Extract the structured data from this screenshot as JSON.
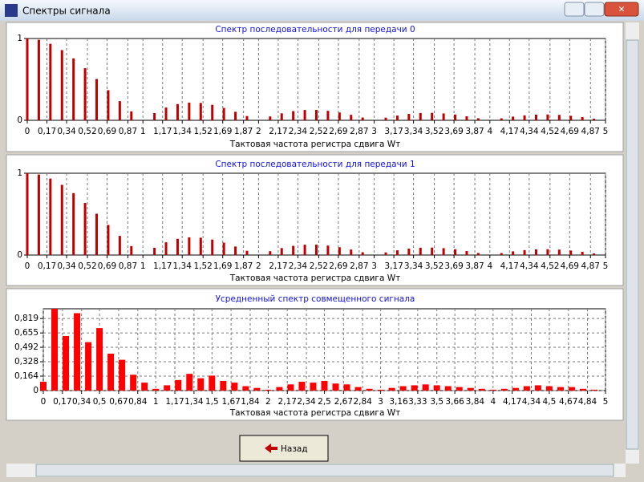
{
  "window": {
    "title": "Спектры сигнала",
    "button": "Назад"
  },
  "chart_data": [
    {
      "type": "bar",
      "title": "Спектр  последовательности для передачи 0",
      "xlabel": "Тактовая частота регистра сдвига Wт",
      "x": [
        0,
        0.1,
        0.2,
        0.3,
        0.4,
        0.5,
        0.6,
        0.7,
        0.8,
        0.9,
        1,
        1.1,
        1.2,
        1.3,
        1.4,
        1.5,
        1.6,
        1.7,
        1.8,
        1.9,
        2,
        2.1,
        2.2,
        2.3,
        2.4,
        2.5,
        2.6,
        2.7,
        2.8,
        2.9,
        3,
        3.1,
        3.2,
        3.3,
        3.4,
        3.5,
        3.6,
        3.7,
        3.8,
        3.9,
        4,
        4.1,
        4.2,
        4.3,
        4.4,
        4.5,
        4.6,
        4.7,
        4.8,
        4.9,
        5
      ],
      "values": [
        1,
        0.984,
        0.935,
        0.858,
        0.757,
        0.637,
        0.505,
        0.368,
        0.234,
        0.109,
        0,
        0.089,
        0.156,
        0.198,
        0.216,
        0.212,
        0.189,
        0.151,
        0.104,
        0.052,
        0,
        0.047,
        0.085,
        0.112,
        0.126,
        0.127,
        0.116,
        0.095,
        0.067,
        0.034,
        0,
        0.032,
        0.058,
        0.078,
        0.089,
        0.091,
        0.084,
        0.07,
        0.049,
        0.025,
        0,
        0.024,
        0.045,
        0.06,
        0.069,
        0.071,
        0.066,
        0.055,
        0.039,
        0.02,
        0
      ],
      "color": "#c00000",
      "xlim": [
        0,
        5
      ],
      "ylim": [
        0,
        1
      ],
      "yticks": [
        0,
        1
      ],
      "grid_x": true,
      "grid_y": false,
      "xticks": [
        0,
        {
          "value": 0.17,
          "label": "0,17"
        },
        {
          "value": 0.34,
          "label": "0,34"
        },
        {
          "value": 0.52,
          "label": "0,52"
        },
        {
          "value": 0.69,
          "label": "0,69"
        },
        {
          "value": 0.87,
          "label": "0,87"
        },
        1,
        {
          "value": 1.17,
          "label": "1,17"
        },
        {
          "value": 1.34,
          "label": "1,34"
        },
        {
          "value": 1.52,
          "label": "1,52"
        },
        {
          "value": 1.69,
          "label": "1,69"
        },
        {
          "value": 1.87,
          "label": "1,87"
        },
        2,
        {
          "value": 2.17,
          "label": "2,17"
        },
        {
          "value": 2.34,
          "label": "2,34"
        },
        {
          "value": 2.52,
          "label": "2,52"
        },
        {
          "value": 2.69,
          "label": "2,69"
        },
        {
          "value": 2.87,
          "label": "2,87"
        },
        3,
        {
          "value": 3.17,
          "label": "3,17"
        },
        {
          "value": 3.34,
          "label": "3,34"
        },
        {
          "value": 3.52,
          "label": "3,52"
        },
        {
          "value": 3.69,
          "label": "3,69"
        },
        {
          "value": 3.87,
          "label": "3,87"
        },
        4,
        {
          "value": 4.17,
          "label": "4,17"
        },
        {
          "value": 4.34,
          "label": "4,34"
        },
        {
          "value": 4.52,
          "label": "4,52"
        },
        {
          "value": 4.69,
          "label": "4,69"
        },
        {
          "value": 4.87,
          "label": "4,87"
        },
        5
      ]
    },
    {
      "type": "bar",
      "title": "Спектр последовательности для передачи 1",
      "xlabel": "Тактовая частота регистра сдвига Wт",
      "x": [
        0,
        0.1,
        0.2,
        0.3,
        0.4,
        0.5,
        0.6,
        0.7,
        0.8,
        0.9,
        1,
        1.1,
        1.2,
        1.3,
        1.4,
        1.5,
        1.6,
        1.7,
        1.8,
        1.9,
        2,
        2.1,
        2.2,
        2.3,
        2.4,
        2.5,
        2.6,
        2.7,
        2.8,
        2.9,
        3,
        3.1,
        3.2,
        3.3,
        3.4,
        3.5,
        3.6,
        3.7,
        3.8,
        3.9,
        4,
        4.1,
        4.2,
        4.3,
        4.4,
        4.5,
        4.6,
        4.7,
        4.8,
        4.9,
        5
      ],
      "values": [
        1,
        0.984,
        0.935,
        0.858,
        0.757,
        0.637,
        0.505,
        0.368,
        0.234,
        0.109,
        0,
        0.089,
        0.156,
        0.198,
        0.216,
        0.212,
        0.189,
        0.151,
        0.104,
        0.052,
        0,
        0.047,
        0.085,
        0.112,
        0.126,
        0.127,
        0.116,
        0.095,
        0.067,
        0.034,
        0,
        0.032,
        0.058,
        0.078,
        0.089,
        0.091,
        0.084,
        0.07,
        0.049,
        0.025,
        0,
        0.024,
        0.045,
        0.06,
        0.069,
        0.071,
        0.066,
        0.055,
        0.039,
        0.02,
        0
      ],
      "color": "#c00000",
      "xlim": [
        0,
        5
      ],
      "ylim": [
        0,
        1
      ],
      "yticks": [
        0,
        1
      ],
      "grid_x": true,
      "grid_y": false,
      "xticks": [
        0,
        {
          "value": 0.17,
          "label": "0,17"
        },
        {
          "value": 0.34,
          "label": "0,34"
        },
        {
          "value": 0.52,
          "label": "0,52"
        },
        {
          "value": 0.69,
          "label": "0,69"
        },
        {
          "value": 0.87,
          "label": "0,87"
        },
        1,
        {
          "value": 1.17,
          "label": "1,17"
        },
        {
          "value": 1.34,
          "label": "1,34"
        },
        {
          "value": 1.52,
          "label": "1,52"
        },
        {
          "value": 1.69,
          "label": "1,69"
        },
        {
          "value": 1.87,
          "label": "1,87"
        },
        2,
        {
          "value": 2.17,
          "label": "2,17"
        },
        {
          "value": 2.34,
          "label": "2,34"
        },
        {
          "value": 2.52,
          "label": "2,52"
        },
        {
          "value": 2.69,
          "label": "2,69"
        },
        {
          "value": 2.87,
          "label": "2,87"
        },
        3,
        {
          "value": 3.17,
          "label": "3,17"
        },
        {
          "value": 3.34,
          "label": "3,34"
        },
        {
          "value": 3.52,
          "label": "3,52"
        },
        {
          "value": 3.69,
          "label": "3,69"
        },
        {
          "value": 3.87,
          "label": "3,87"
        },
        4,
        {
          "value": 4.17,
          "label": "4,17"
        },
        {
          "value": 4.34,
          "label": "4,34"
        },
        {
          "value": 4.52,
          "label": "4,52"
        },
        {
          "value": 4.69,
          "label": "4,69"
        },
        {
          "value": 4.87,
          "label": "4,87"
        },
        5
      ]
    },
    {
      "type": "bar",
      "title": "Усредненный спектр совмещенного сигнала",
      "xlabel": "Тактовая частота регистра сдвига Wт",
      "x": [
        0,
        0.1,
        0.2,
        0.3,
        0.4,
        0.5,
        0.6,
        0.7,
        0.8,
        0.9,
        1,
        1.1,
        1.2,
        1.3,
        1.4,
        1.5,
        1.6,
        1.7,
        1.8,
        1.9,
        2,
        2.1,
        2.2,
        2.3,
        2.4,
        2.5,
        2.6,
        2.7,
        2.8,
        2.9,
        3,
        3.1,
        3.2,
        3.3,
        3.4,
        3.5,
        3.6,
        3.7,
        3.8,
        3.9,
        4,
        4.1,
        4.2,
        4.3,
        4.4,
        4.5,
        4.6,
        4.7,
        4.8,
        4.9,
        5
      ],
      "values": [
        0.1,
        0.93,
        0.62,
        0.88,
        0.55,
        0.71,
        0.42,
        0.35,
        0.18,
        0.09,
        0.02,
        0.06,
        0.12,
        0.19,
        0.14,
        0.17,
        0.11,
        0.09,
        0.05,
        0.03,
        0.01,
        0.04,
        0.07,
        0.1,
        0.09,
        0.11,
        0.08,
        0.07,
        0.04,
        0.02,
        0.01,
        0.03,
        0.05,
        0.06,
        0.07,
        0.06,
        0.05,
        0.04,
        0.03,
        0.02,
        0.01,
        0.02,
        0.03,
        0.05,
        0.06,
        0.05,
        0.04,
        0.04,
        0.02,
        0.01,
        0
      ],
      "color": "#ff0000",
      "xlim": [
        0,
        5
      ],
      "ylim": [
        0,
        0.93
      ],
      "grid_x": true,
      "grid_y": true,
      "yticks": [
        0,
        {
          "value": 0.164,
          "label": "0,164"
        },
        {
          "value": 0.328,
          "label": "0,328"
        },
        {
          "value": 0.492,
          "label": "0,492"
        },
        {
          "value": 0.655,
          "label": "0,655"
        },
        {
          "value": 0.819,
          "label": "0,819"
        }
      ],
      "xticks": [
        0,
        {
          "value": 0.17,
          "label": "0,17"
        },
        {
          "value": 0.34,
          "label": "0,34"
        },
        {
          "value": 0.5,
          "label": "0,5"
        },
        {
          "value": 0.67,
          "label": "0,67"
        },
        {
          "value": 0.84,
          "label": "0,84"
        },
        1,
        {
          "value": 1.17,
          "label": "1,17"
        },
        {
          "value": 1.34,
          "label": "1,34"
        },
        {
          "value": 1.5,
          "label": "1,5"
        },
        {
          "value": 1.67,
          "label": "1,67"
        },
        {
          "value": 1.84,
          "label": "1,84"
        },
        2,
        {
          "value": 2.17,
          "label": "2,17"
        },
        {
          "value": 2.34,
          "label": "2,34"
        },
        {
          "value": 2.5,
          "label": "2,5"
        },
        {
          "value": 2.67,
          "label": "2,67"
        },
        {
          "value": 2.84,
          "label": "2,84"
        },
        3,
        {
          "value": 3.16,
          "label": "3,16"
        },
        {
          "value": 3.33,
          "label": "3,33"
        },
        {
          "value": 3.5,
          "label": "3,5"
        },
        {
          "value": 3.66,
          "label": "3,66"
        },
        {
          "value": 3.84,
          "label": "3,84"
        },
        4,
        {
          "value": 4.17,
          "label": "4,17"
        },
        {
          "value": 4.34,
          "label": "4,34"
        },
        {
          "value": 4.5,
          "label": "4,5"
        },
        {
          "value": 4.67,
          "label": "4,67"
        },
        {
          "value": 4.84,
          "label": "4,84"
        },
        5
      ]
    }
  ]
}
